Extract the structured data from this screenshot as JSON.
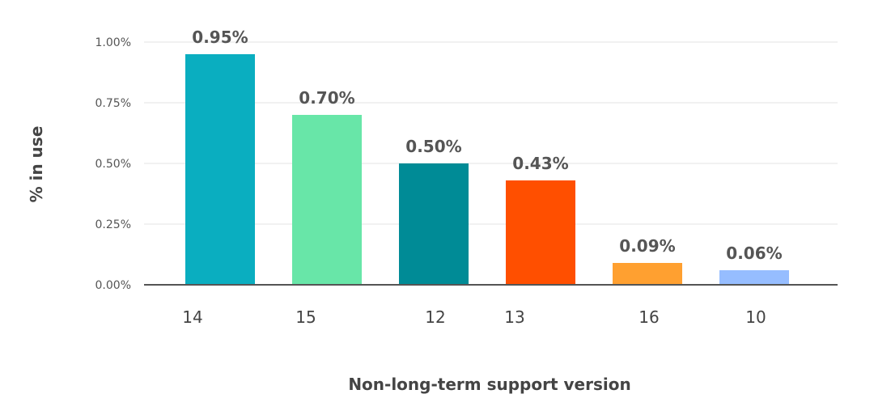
{
  "chart_data": {
    "type": "bar",
    "title": "",
    "xlabel": "Non-long-term support version",
    "ylabel": "% in use",
    "ylim": [
      0,
      1.0
    ],
    "yticks": [
      0,
      0.25,
      0.5,
      0.75,
      1.0
    ],
    "ytick_labels": [
      "0.00%",
      "0.25%",
      "0.50%",
      "0.75%",
      "1.00%"
    ],
    "grid": true,
    "legend": "none",
    "categories": [
      "14",
      "15",
      "12",
      "13",
      "16",
      "10"
    ],
    "values": [
      0.95,
      0.7,
      0.5,
      0.43,
      0.09,
      0.06
    ],
    "data_labels": [
      "0.95%",
      "0.70%",
      "0.50%",
      "0.43%",
      "0.09%",
      "0.06%"
    ],
    "colors": [
      "#0aaec0",
      "#68e6a8",
      "#008b96",
      "#ff4f00",
      "#ffa030",
      "#96bdff"
    ]
  }
}
